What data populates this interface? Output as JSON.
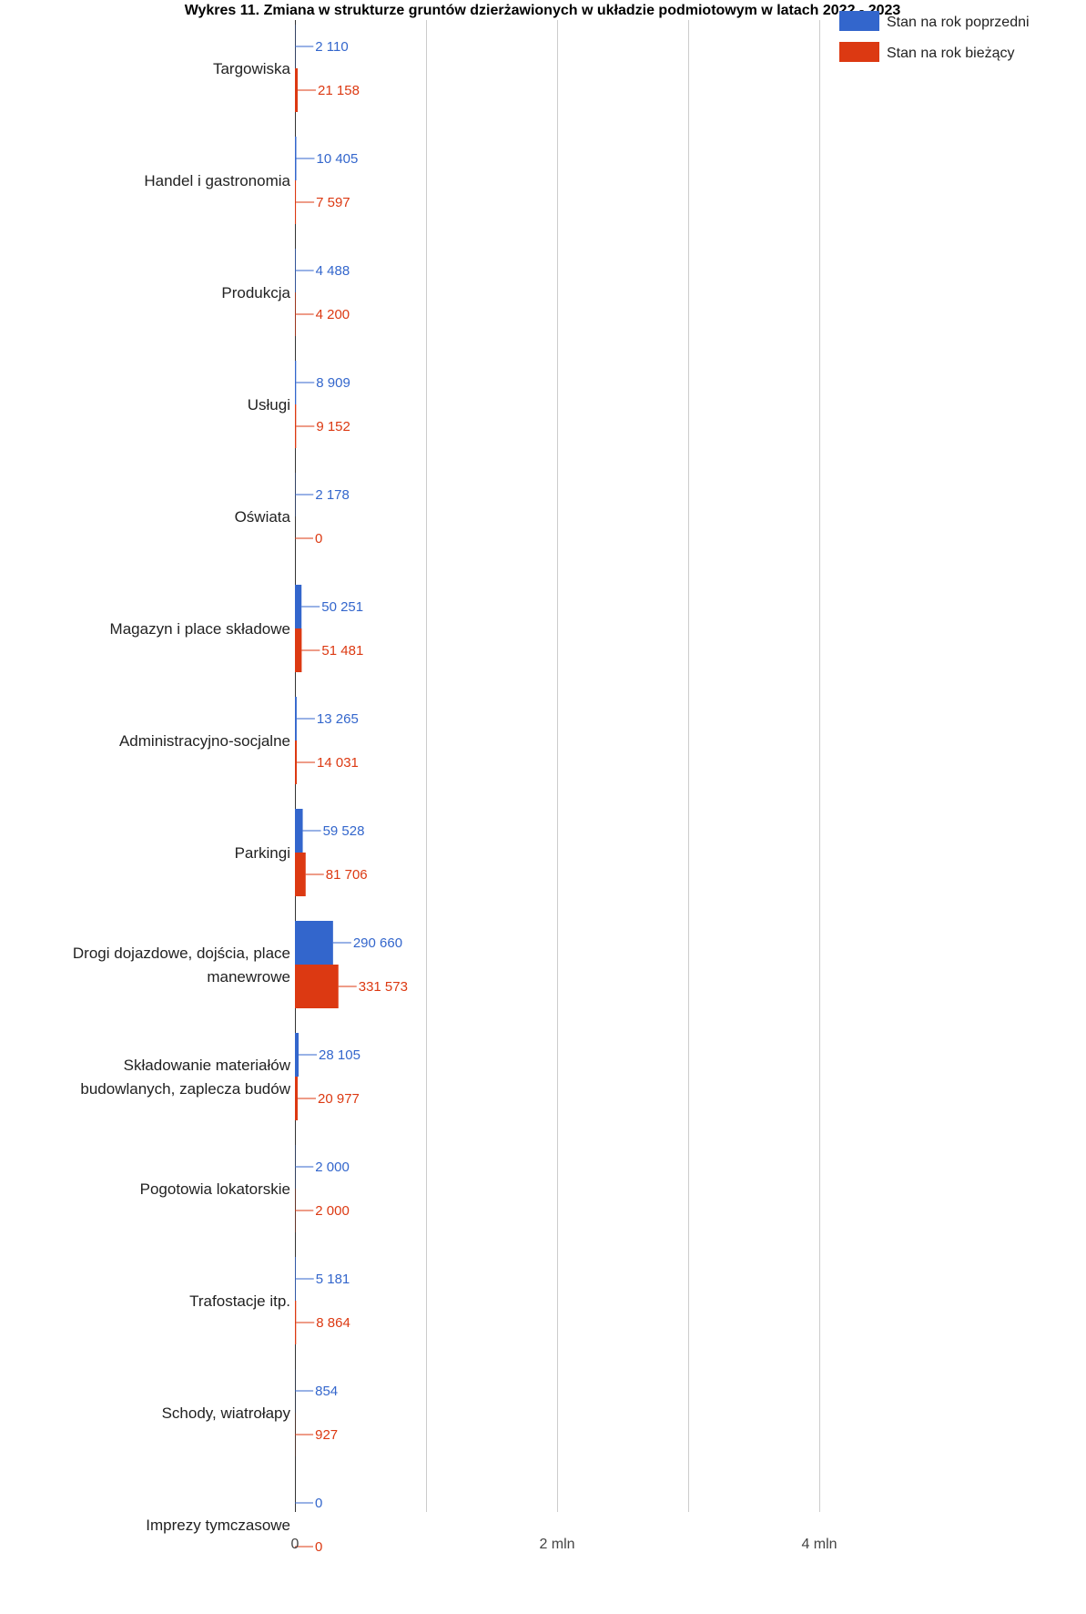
{
  "chart_data": {
    "type": "bar",
    "orientation": "horizontal",
    "title": "Wykres 11. Zmiana w strukturze gruntów dzierżawionych w układzie podmiotowym w latach 2022 - 2023",
    "xlabel": "",
    "ylabel": "",
    "xlim": [
      0,
      5400000
    ],
    "x_ticks": [
      {
        "value": 0,
        "label": "0"
      },
      {
        "value": 2000000,
        "label": "2 mln"
      },
      {
        "value": 4000000,
        "label": "4 mln"
      }
    ],
    "x_gridlines": [
      0,
      1000000,
      2000000,
      3000000,
      4000000
    ],
    "grid": true,
    "legend_position": "top-right",
    "categories": [
      [
        "Targowiska"
      ],
      [
        "Handel i gastronomia"
      ],
      [
        "Produkcja"
      ],
      [
        "Usługi"
      ],
      [
        "Oświata"
      ],
      [
        "Magazyn i place składowe"
      ],
      [
        "Administracyjno-socjalne"
      ],
      [
        "Parkingi"
      ],
      [
        "Drogi dojazdowe, dojścia, place",
        "manewrowe"
      ],
      [
        "Składowanie materiałów",
        "budowlanych, zaplecza budów"
      ],
      [
        "Pogotowia lokatorskie"
      ],
      [
        "Trafostacje itp."
      ],
      [
        "Schody, wiatrołapy"
      ],
      [
        "Imprezy tymczasowe"
      ]
    ],
    "series": [
      {
        "name": "Stan na rok poprzedni",
        "color": "#3366cc",
        "values": [
          2110,
          10405,
          4488,
          8909,
          2178,
          50251,
          13265,
          59528,
          290660,
          28105,
          2000,
          5181,
          854,
          0
        ],
        "labels": [
          "2 110",
          "10 405",
          "4 488",
          "8 909",
          "2 178",
          "50 251",
          "13 265",
          "59 528",
          "290 660",
          "28 105",
          "2 000",
          "5 181",
          "854",
          "0"
        ]
      },
      {
        "name": "Stan na rok bieżący",
        "color": "#dc3912",
        "values": [
          21158,
          7597,
          4200,
          9152,
          0,
          51481,
          14031,
          81706,
          331573,
          20977,
          2000,
          8864,
          927,
          0
        ],
        "labels": [
          "21 158",
          "7 597",
          "4 200",
          "9 152",
          "0",
          "51 481",
          "14 031",
          "81 706",
          "331 573",
          "20 977",
          "2 000",
          "8 864",
          "927",
          "0"
        ]
      }
    ]
  }
}
